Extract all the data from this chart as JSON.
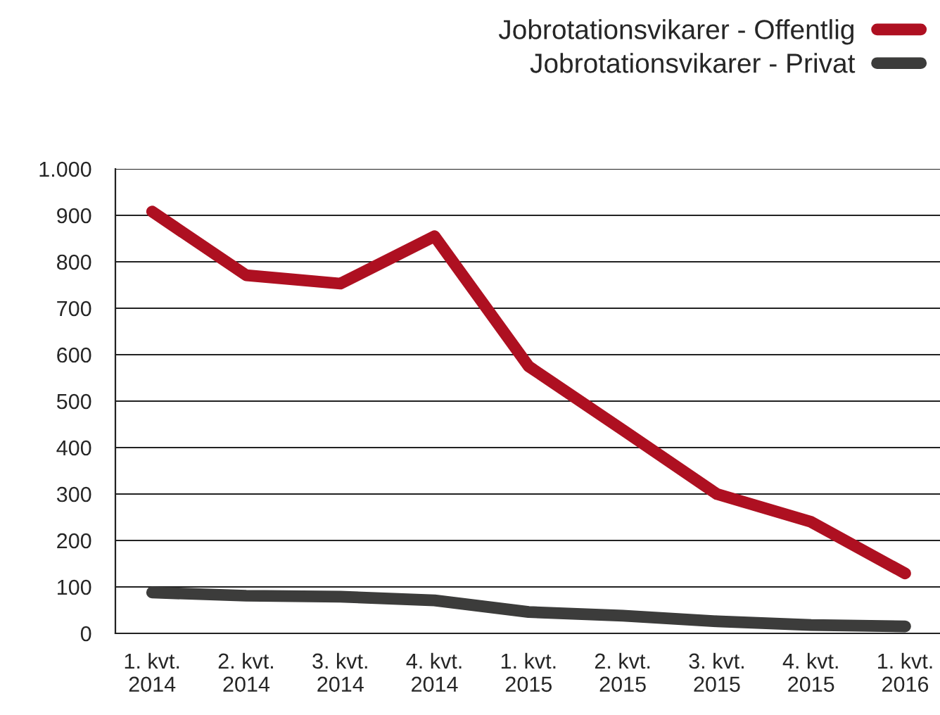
{
  "chart_data": {
    "type": "line",
    "categories": [
      "1. kvt.\n2014",
      "2. kvt.\n2014",
      "3. kvt.\n2014",
      "4. kvt.\n2014",
      "1. kvt.\n2015",
      "2. kvt.\n2015",
      "3. kvt.\n2015",
      "4. kvt.\n2015",
      "1. kvt.\n2016"
    ],
    "series": [
      {
        "name": "Jobrotationsvikarer - Offentlig",
        "color": "#ae1021",
        "values": [
          908,
          771,
          753,
          855,
          575,
          438,
          300,
          240,
          129
        ]
      },
      {
        "name": "Jobrotationsvikarer - Privat",
        "color": "#3c3c3b",
        "values": [
          88,
          81,
          79,
          71,
          46,
          38,
          26,
          18,
          15
        ]
      }
    ],
    "ylim": [
      0,
      1000
    ],
    "yticks": [
      0,
      100,
      200,
      300,
      400,
      500,
      600,
      700,
      800,
      900,
      {
        "value": 1000,
        "label": "1.000"
      }
    ],
    "grid": "y",
    "legend": "top right",
    "marker": "none",
    "line_style": "solid"
  }
}
